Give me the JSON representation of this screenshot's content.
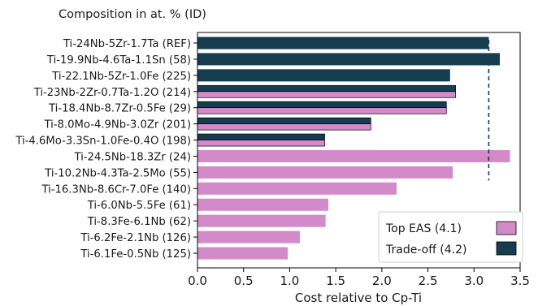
{
  "chart_data": {
    "type": "bar",
    "orientation": "horizontal",
    "title": "Composition in at. % (ID)",
    "xlabel": "Cost relative to Cp-Ti",
    "ylabel": "",
    "xlim": [
      0.0,
      3.5
    ],
    "x_ticks": [
      "0.0",
      "0.5",
      "1.0",
      "1.5",
      "2.0",
      "2.5",
      "3.0",
      "3.5"
    ],
    "grid": false,
    "legend_position": "bottom-right",
    "categories": [
      "Ti-24Nb-5Zr-1.7Ta (REF)",
      "Ti-19.9Nb-4.6Ta-1.1Sn (58)",
      "Ti-22.1Nb-5Zr-1.0Fe (225)",
      "Ti-23Nb-2Zr-0.7Ta-1.2O (214)",
      "Ti-18.4Nb-8.7Zr-0.5Fe (29)",
      "Ti-8.0Mo-4.9Nb-3.0Zr (201)",
      "Ti-4.6Mo-3.3Sn-1.0Fe-0.4O (198)",
      "Ti-24.5Nb-18.3Zr (24)",
      "Ti-10.2Nb-4.3Ta-2.5Mo (55)",
      "Ti-16.3Nb-8.6Cr-7.0Fe (140)",
      "Ti-6.0Nb-5.5Fe (61)",
      "Ti-8.3Fe-6.1Nb (62)",
      "Ti-6.2Fe-2.1Nb (126)",
      "Ti-6.1Fe-0.5Nb (125)"
    ],
    "series": [
      {
        "name": "Top EAS (4.1)",
        "color": "#d38ac9",
        "values": [
          null,
          null,
          null,
          2.8,
          2.7,
          1.88,
          1.38,
          3.39,
          2.77,
          2.16,
          1.42,
          1.39,
          1.11,
          0.98
        ]
      },
      {
        "name": "Trade-off (4.2)",
        "color": "#163c50",
        "values": [
          3.16,
          3.28,
          2.74,
          2.8,
          2.7,
          1.88,
          1.38,
          null,
          null,
          null,
          null,
          null,
          null,
          null
        ]
      }
    ],
    "reference_line": {
      "x": 3.16,
      "style": "dashed",
      "color": "#163c50"
    }
  }
}
